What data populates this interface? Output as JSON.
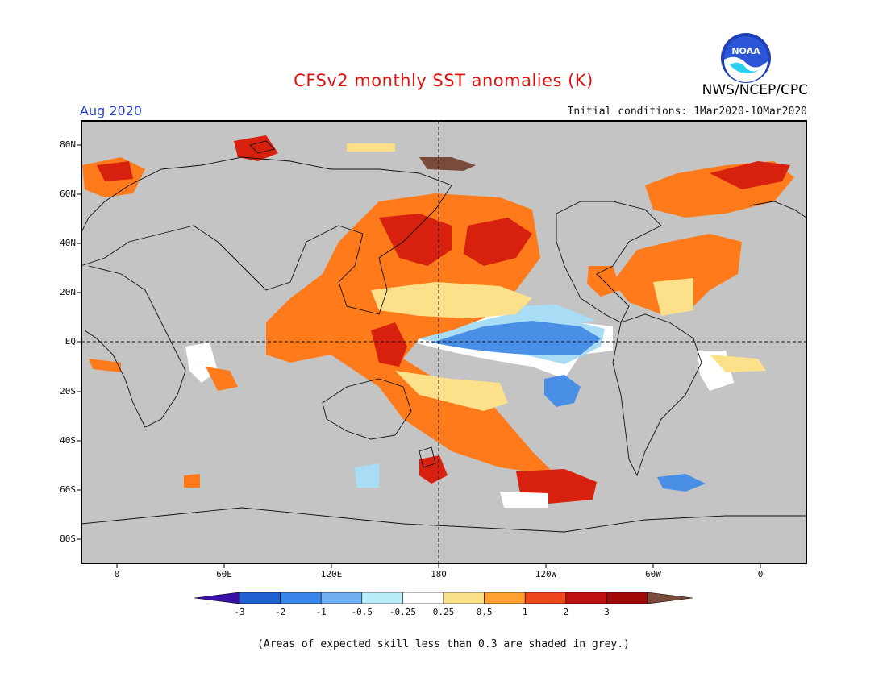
{
  "title": "CFSv2 monthly SST anomalies (K)",
  "valid_month": "Aug 2020",
  "initial_conditions": "Initial conditions: 1Mar2020-10Mar2020",
  "organization": "NWS/NCEP/CPC",
  "logo_text": "NOAA",
  "lat_labels": [
    "80N",
    "60N",
    "40N",
    "20N",
    "EQ",
    "20S",
    "40S",
    "60S",
    "80S"
  ],
  "lon_labels": [
    "0",
    "60E",
    "120E",
    "180",
    "120W",
    "60W",
    "0"
  ],
  "colorbar": {
    "labels": [
      "-3",
      "-2",
      "-1",
      "-0.5",
      "-0.25",
      "0.25",
      "0.5",
      "1",
      "2",
      "3"
    ],
    "colors": [
      "#3a10a8",
      "#1f5fd2",
      "#3a86e8",
      "#72b0f0",
      "#b8ecf6",
      "#ffffff",
      "#fbe08a",
      "#ffa030",
      "#f0461c",
      "#c00f0f",
      "#a00808",
      "#7a4a3a"
    ]
  },
  "colors": {
    "grey_mask": "#c4c4c4",
    "warm_strong": "#d8200f",
    "warm": "#ff7a1a",
    "warm_weak": "#fde08a",
    "cool": "#4a8fe6",
    "cool_weak": "#a9dcf5",
    "brown": "#7a4a3a"
  },
  "footnote": "(Areas of expected skill less than 0.3 are shaded in grey.)"
}
